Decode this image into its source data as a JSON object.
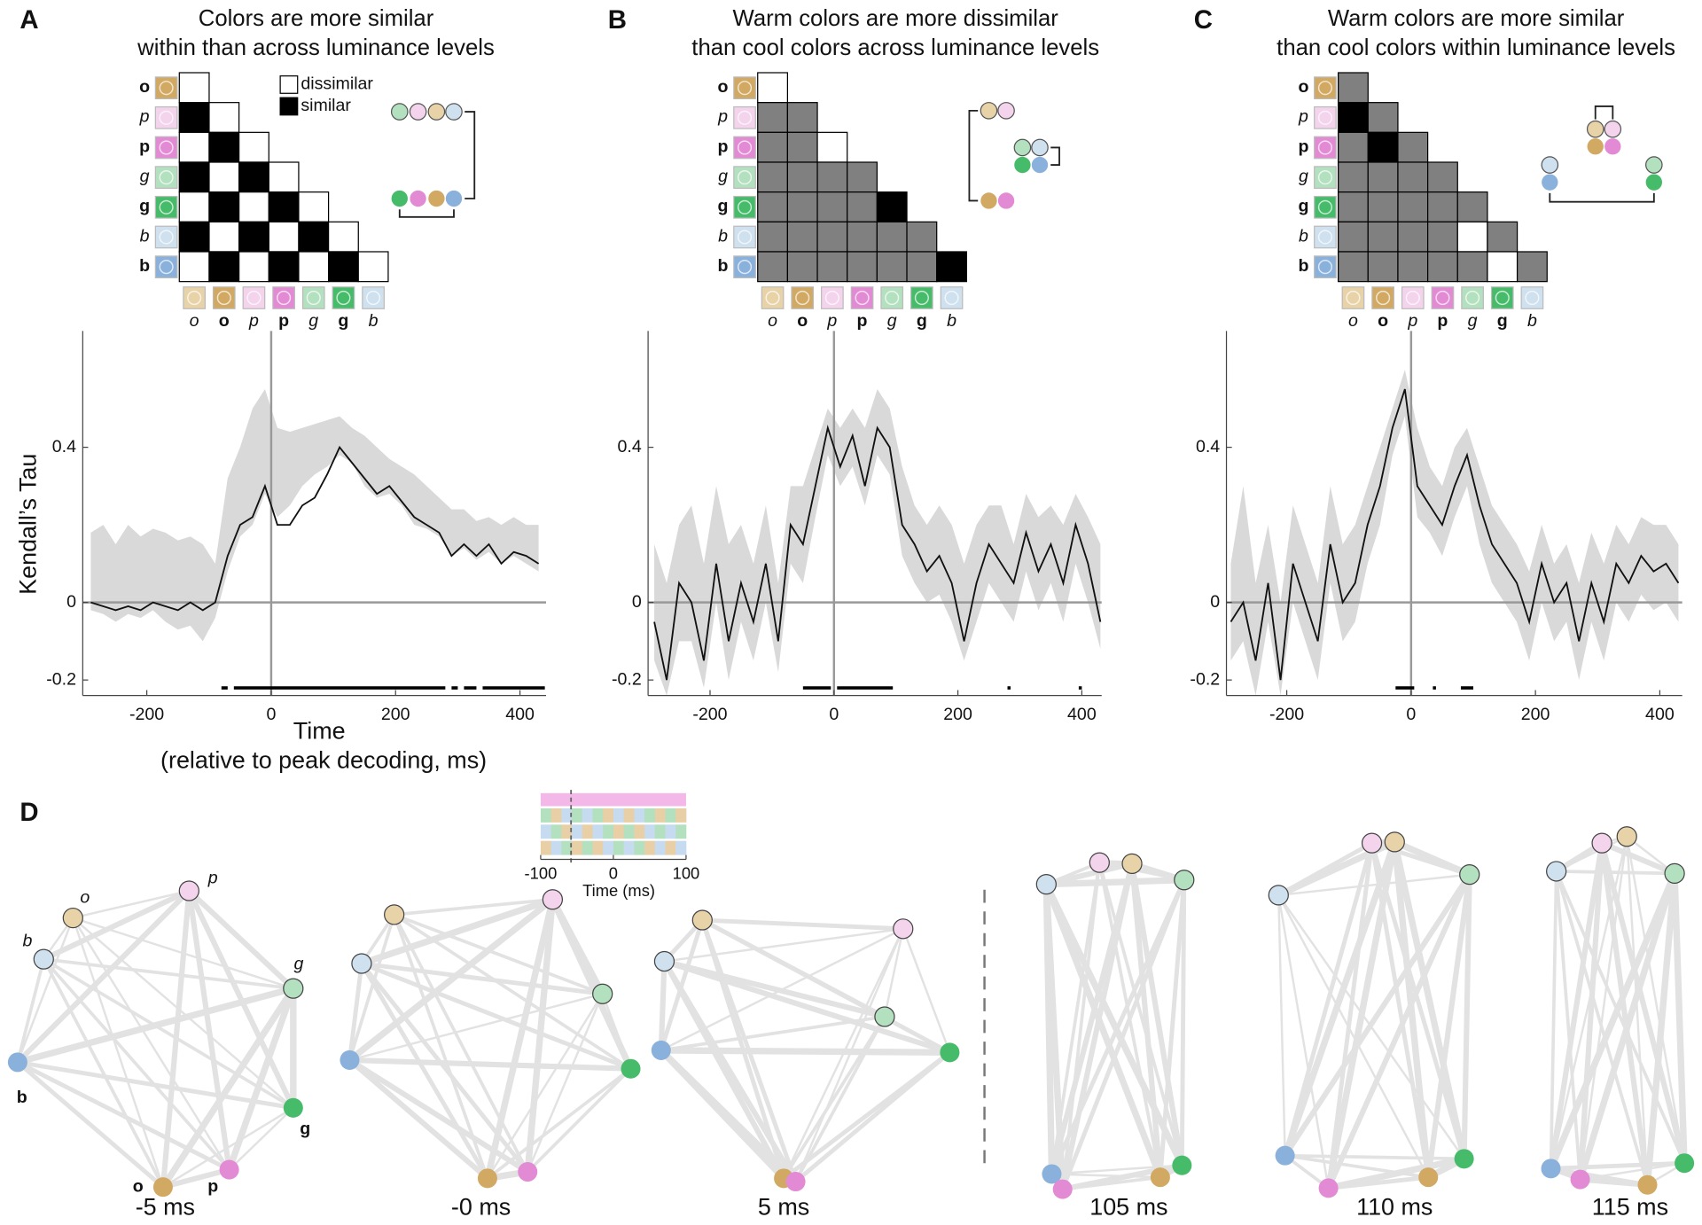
{
  "panel_labels": [
    "A",
    "B",
    "C",
    "D"
  ],
  "matrices": [
    {
      "title": [
        "Colors are more similar",
        "within than across luminance levels"
      ],
      "legend": [
        "dissimilar",
        "similar"
      ],
      "row_labels": [
        "o",
        "p",
        "p",
        "g",
        "g",
        "b",
        "b"
      ],
      "col_labels": [
        "o",
        "o",
        "p",
        "p",
        "g",
        "g",
        "b"
      ],
      "cells": [
        [
          0
        ],
        [
          1,
          0
        ],
        [
          0,
          1,
          0
        ],
        [
          1,
          0,
          1,
          0
        ],
        [
          0,
          1,
          0,
          1,
          0
        ],
        [
          1,
          0,
          1,
          0,
          1,
          0
        ],
        [
          0,
          1,
          0,
          1,
          0,
          1,
          0
        ]
      ]
    },
    {
      "title": [
        "Warm colors are more dissimilar",
        "than cool colors across luminance levels"
      ],
      "row_labels": [
        "o",
        "p",
        "p",
        "g",
        "g",
        "b",
        "b"
      ],
      "col_labels": [
        "o",
        "o",
        "p",
        "p",
        "g",
        "g",
        "b"
      ],
      "cells": [
        [
          0
        ],
        [
          0.5,
          0.5
        ],
        [
          0.5,
          0.5,
          0
        ],
        [
          0.5,
          0.5,
          0.5,
          0.5
        ],
        [
          0.5,
          0.5,
          0.5,
          0.5,
          1
        ],
        [
          0.5,
          0.5,
          0.5,
          0.5,
          0.5,
          0.5
        ],
        [
          0.5,
          0.5,
          0.5,
          0.5,
          0.5,
          0.5,
          1
        ]
      ]
    },
    {
      "title": [
        "Warm colors are more similar",
        "than cool colors within luminance levels"
      ],
      "row_labels": [
        "o",
        "p",
        "p",
        "g",
        "g",
        "b",
        "b"
      ],
      "col_labels": [
        "o",
        "o",
        "p",
        "p",
        "g",
        "g",
        "b"
      ],
      "cells": [
        [
          0.5
        ],
        [
          1,
          0.5
        ],
        [
          0.5,
          1,
          0.5
        ],
        [
          0.5,
          0.5,
          0.5,
          0.5
        ],
        [
          0.5,
          0.5,
          0.5,
          0.5,
          0.5
        ],
        [
          0.5,
          0.5,
          0.5,
          0.5,
          0,
          0.5
        ],
        [
          0.5,
          0.5,
          0.5,
          0.5,
          0.5,
          0,
          0.5
        ]
      ]
    }
  ],
  "chart_data": [
    {
      "type": "line",
      "ylabel": "Kendall’s Tau",
      "xlabel": [
        "Time",
        "(relative to peak decoding, ms)"
      ],
      "x": [
        -290,
        -270,
        -250,
        -230,
        -210,
        -190,
        -170,
        -150,
        -130,
        -110,
        -90,
        -70,
        -50,
        -30,
        -10,
        10,
        30,
        50,
        70,
        90,
        110,
        130,
        150,
        170,
        190,
        210,
        230,
        250,
        270,
        290,
        310,
        330,
        350,
        370,
        390,
        410,
        430
      ],
      "series": [
        {
          "color": "#111111",
          "values": [
            0.0,
            -0.01,
            -0.02,
            -0.01,
            -0.02,
            0.0,
            -0.01,
            -0.02,
            0.0,
            -0.02,
            0.0,
            0.12,
            0.2,
            0.22,
            0.3,
            0.2,
            0.2,
            0.25,
            0.27,
            0.33,
            0.4,
            0.36,
            0.32,
            0.28,
            0.3,
            0.26,
            0.22,
            0.2,
            0.18,
            0.12,
            0.15,
            0.12,
            0.15,
            0.1,
            0.13,
            0.12,
            0.1
          ]
        }
      ],
      "band": {
        "color": "#d9d9d9",
        "upper": [
          0.18,
          0.2,
          0.15,
          0.2,
          0.17,
          0.19,
          0.18,
          0.16,
          0.17,
          0.15,
          0.1,
          0.32,
          0.4,
          0.5,
          0.55,
          0.45,
          0.44,
          0.45,
          0.46,
          0.47,
          0.48,
          0.45,
          0.43,
          0.4,
          0.37,
          0.35,
          0.33,
          0.3,
          0.27,
          0.24,
          0.24,
          0.21,
          0.22,
          0.2,
          0.22,
          0.2,
          0.2
        ],
        "lower": [
          -0.02,
          -0.03,
          -0.05,
          -0.03,
          -0.04,
          -0.02,
          -0.05,
          -0.07,
          -0.06,
          -0.1,
          -0.04,
          0.08,
          0.17,
          0.2,
          0.28,
          0.22,
          0.25,
          0.3,
          0.33,
          0.35,
          0.38,
          0.36,
          0.3,
          0.27,
          0.28,
          0.25,
          0.2,
          0.19,
          0.17,
          0.12,
          0.14,
          0.11,
          0.13,
          0.1,
          0.12,
          0.1,
          0.08
        ]
      },
      "significance": [
        [
          -80,
          -70
        ],
        [
          -60,
          280
        ],
        [
          290,
          300
        ],
        [
          310,
          330
        ],
        [
          340,
          440
        ]
      ],
      "xlim": [
        -303,
        442
      ],
      "ylim": [
        -0.24,
        0.7
      ],
      "xticks": [
        -200,
        0,
        200,
        400
      ],
      "yticks": [
        -0.2,
        0,
        0.4
      ]
    },
    {
      "type": "line",
      "x": [
        -290,
        -270,
        -250,
        -230,
        -210,
        -190,
        -170,
        -150,
        -130,
        -110,
        -90,
        -70,
        -50,
        -30,
        -10,
        10,
        30,
        50,
        70,
        90,
        110,
        130,
        150,
        170,
        190,
        210,
        230,
        250,
        270,
        290,
        310,
        330,
        350,
        370,
        390,
        410,
        430
      ],
      "series": [
        {
          "color": "#111111",
          "values": [
            -0.05,
            -0.2,
            0.05,
            0.0,
            -0.15,
            0.1,
            -0.1,
            0.05,
            -0.05,
            0.1,
            -0.1,
            0.2,
            0.15,
            0.3,
            0.45,
            0.35,
            0.43,
            0.3,
            0.45,
            0.4,
            0.2,
            0.15,
            0.08,
            0.12,
            0.05,
            -0.1,
            0.05,
            0.15,
            0.1,
            0.05,
            0.18,
            0.08,
            0.15,
            0.05,
            0.2,
            0.1,
            -0.05
          ]
        }
      ],
      "band": {
        "color": "#d9d9d9",
        "upper": [
          0.15,
          0.05,
          0.2,
          0.25,
          0.1,
          0.3,
          0.15,
          0.2,
          0.1,
          0.25,
          0.05,
          0.3,
          0.3,
          0.4,
          0.5,
          0.45,
          0.5,
          0.45,
          0.55,
          0.5,
          0.35,
          0.25,
          0.2,
          0.25,
          0.2,
          0.1,
          0.2,
          0.25,
          0.25,
          0.15,
          0.28,
          0.22,
          0.25,
          0.2,
          0.28,
          0.22,
          0.15
        ],
        "lower": [
          -0.15,
          -0.24,
          -0.1,
          -0.1,
          -0.22,
          0.0,
          -0.2,
          -0.05,
          -0.15,
          0.0,
          -0.18,
          0.1,
          0.05,
          0.22,
          0.38,
          0.3,
          0.35,
          0.25,
          0.38,
          0.33,
          0.12,
          0.05,
          0.0,
          0.02,
          -0.05,
          -0.15,
          -0.05,
          0.05,
          0.0,
          -0.05,
          0.08,
          -0.02,
          0.05,
          -0.05,
          0.1,
          0.0,
          -0.12
        ]
      },
      "significance": [
        [
          -50,
          -5
        ],
        [
          5,
          95
        ],
        [
          280,
          285
        ],
        [
          395,
          400
        ]
      ],
      "xlim": [
        -300,
        432
      ],
      "ylim": [
        -0.24,
        0.7
      ],
      "xticks": [
        -200,
        0,
        200,
        400
      ],
      "yticks": [
        -0.2,
        0,
        0.4
      ]
    },
    {
      "type": "line",
      "x": [
        -290,
        -270,
        -250,
        -230,
        -210,
        -190,
        -170,
        -150,
        -130,
        -110,
        -90,
        -70,
        -50,
        -30,
        -10,
        10,
        30,
        50,
        70,
        90,
        110,
        130,
        150,
        170,
        190,
        210,
        230,
        250,
        270,
        290,
        310,
        330,
        350,
        370,
        390,
        410,
        430
      ],
      "series": [
        {
          "color": "#111111",
          "values": [
            -0.05,
            0.0,
            -0.15,
            0.05,
            -0.2,
            0.1,
            0.0,
            -0.1,
            0.15,
            0.0,
            0.05,
            0.2,
            0.3,
            0.45,
            0.55,
            0.3,
            0.25,
            0.2,
            0.3,
            0.38,
            0.25,
            0.15,
            0.1,
            0.05,
            -0.05,
            0.1,
            0.0,
            0.05,
            -0.1,
            0.05,
            -0.05,
            0.1,
            0.05,
            0.12,
            0.08,
            0.1,
            0.05
          ]
        }
      ],
      "band": {
        "color": "#d9d9d9",
        "upper": [
          0.1,
          0.3,
          0.05,
          0.2,
          0.0,
          0.25,
          0.15,
          0.05,
          0.3,
          0.15,
          0.2,
          0.3,
          0.4,
          0.5,
          0.6,
          0.45,
          0.35,
          0.3,
          0.4,
          0.45,
          0.35,
          0.25,
          0.2,
          0.15,
          0.08,
          0.2,
          0.1,
          0.15,
          0.05,
          0.18,
          0.1,
          0.2,
          0.15,
          0.22,
          0.2,
          0.2,
          0.15
        ],
        "lower": [
          -0.15,
          -0.1,
          -0.24,
          -0.05,
          -0.24,
          0.0,
          -0.1,
          -0.2,
          0.05,
          -0.1,
          -0.05,
          0.1,
          0.2,
          0.38,
          0.48,
          0.22,
          0.18,
          0.12,
          0.22,
          0.3,
          0.15,
          0.05,
          0.0,
          -0.05,
          -0.15,
          0.0,
          -0.1,
          -0.05,
          -0.2,
          -0.05,
          -0.15,
          0.0,
          -0.05,
          0.02,
          -0.02,
          0.0,
          -0.05
        ]
      },
      "significance": [
        [
          -25,
          5
        ],
        [
          35,
          40
        ],
        [
          80,
          100
        ]
      ],
      "xlim": [
        -297,
        436
      ],
      "ylim": [
        -0.24,
        0.7
      ],
      "xticks": [
        -200,
        0,
        200,
        400
      ],
      "yticks": [
        -0.2,
        0,
        0.4
      ]
    }
  ],
  "inset": {
    "xlim": [
      -100,
      100
    ],
    "xticks": [
      -100,
      0,
      100
    ],
    "xlabel": "Time (ms)"
  },
  "networks": {
    "labels": [
      "-5 ms",
      "-0 ms",
      "5 ms",
      "105 ms",
      "110 ms",
      "115 ms"
    ],
    "node_labels": [
      "o",
      "p",
      "b",
      "g",
      "b",
      "g",
      "o",
      "p"
    ]
  }
}
